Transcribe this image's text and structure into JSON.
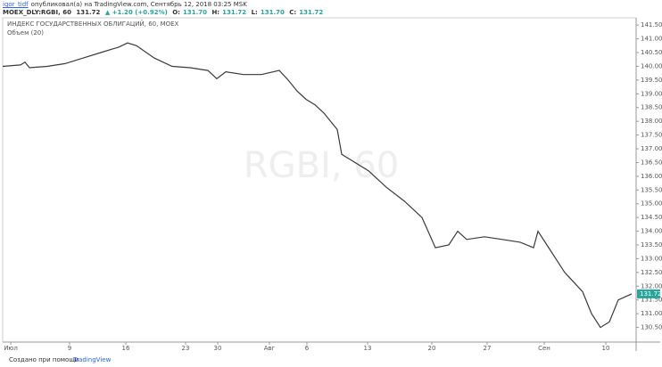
{
  "header": {
    "user": "igor_tidf",
    "published": "опубликовал(а) на TradingView.com, Сентябрь 12, 2018 03:25 MSK",
    "symbol": "MOEX_DLY:RGBI, 60",
    "price": "131.72",
    "change": "▲ +1.20 (+0.92%)",
    "o_label": "O:",
    "o": "131.70",
    "h_label": "H:",
    "h": "131.72",
    "l_label": "L:",
    "l": "131.70",
    "c_label": "C:",
    "c": "131.72"
  },
  "chart_data": {
    "type": "line",
    "title": "ИНДЕКС ГОСУДАРСТВЕННЫХ ОБЛИГАЦИЙ, 60, MOEX",
    "subtitle": "Объем (20)",
    "watermark": "RGBI, 60",
    "last_label": "131.72",
    "x": [
      0,
      2,
      2.5,
      3,
      5,
      7,
      9,
      11,
      13,
      14,
      15,
      17,
      19,
      21,
      23,
      24,
      25,
      27,
      29,
      31,
      32,
      33,
      34,
      35,
      36,
      37.5,
      38,
      39,
      41,
      43,
      45,
      47,
      48.5,
      50,
      51,
      52,
      54,
      56,
      58,
      59.5,
      60,
      61,
      63,
      65,
      66,
      67,
      68,
      69,
      70.5
    ],
    "series": [
      {
        "name": "RGBI",
        "color": "#3a3a3a",
        "values": [
          140.0,
          140.05,
          140.15,
          139.95,
          140.0,
          140.1,
          140.3,
          140.5,
          140.7,
          140.85,
          140.75,
          140.3,
          140.0,
          139.95,
          139.85,
          139.55,
          139.8,
          139.7,
          139.7,
          139.85,
          139.5,
          139.1,
          138.8,
          138.6,
          138.3,
          137.7,
          136.8,
          136.6,
          136.2,
          135.6,
          135.1,
          134.5,
          133.4,
          133.5,
          134.0,
          133.7,
          133.8,
          133.7,
          133.6,
          133.4,
          134.0,
          133.5,
          132.5,
          131.8,
          131.0,
          130.5,
          130.7,
          131.5,
          131.72
        ]
      }
    ],
    "xlim": [
      0,
      71
    ],
    "xticks": [
      {
        "value": 0.9,
        "label": "Июл"
      },
      {
        "value": 7.5,
        "label": "9"
      },
      {
        "value": 13.8,
        "label": "16"
      },
      {
        "value": 20.5,
        "label": "23"
      },
      {
        "value": 24.1,
        "label": "30"
      },
      {
        "value": 29.9,
        "label": "Авг"
      },
      {
        "value": 34.1,
        "label": "6"
      },
      {
        "value": 40.9,
        "label": "13"
      },
      {
        "value": 48.1,
        "label": "20"
      },
      {
        "value": 54.3,
        "label": "27"
      },
      {
        "value": 60.7,
        "label": "Сен"
      },
      {
        "value": 67.6,
        "label": "10"
      }
    ],
    "ylim": [
      130.0,
      141.7
    ],
    "yticks": [
      {
        "value": 130.5,
        "label": "130.50"
      },
      {
        "value": 131,
        "label": "131.00"
      },
      {
        "value": 131.5,
        "label": "131.50"
      },
      {
        "value": 132,
        "label": "132.00"
      },
      {
        "value": 132.5,
        "label": "132.50"
      },
      {
        "value": 133,
        "label": "133.00"
      },
      {
        "value": 133.5,
        "label": "133.50"
      },
      {
        "value": 134,
        "label": "134.00"
      },
      {
        "value": 134.5,
        "label": "134.50"
      },
      {
        "value": 135,
        "label": "135.00"
      },
      {
        "value": 135.5,
        "label": "135.50"
      },
      {
        "value": 136,
        "label": "136.00"
      },
      {
        "value": 136.5,
        "label": "136.50"
      },
      {
        "value": 137,
        "label": "137.00"
      },
      {
        "value": 137.5,
        "label": "137.50"
      },
      {
        "value": 138,
        "label": "138.00"
      },
      {
        "value": 138.5,
        "label": "138.50"
      },
      {
        "value": 139,
        "label": "139.00"
      },
      {
        "value": 139.5,
        "label": "139.50"
      },
      {
        "value": 140,
        "label": "140.00"
      },
      {
        "value": 140.5,
        "label": "140.50"
      },
      {
        "value": 141,
        "label": "141.00"
      },
      {
        "value": 141.5,
        "label": "141.50"
      }
    ],
    "grid": false,
    "footer_text": "Создано при помощи",
    "footer_brand": "TradingView"
  }
}
